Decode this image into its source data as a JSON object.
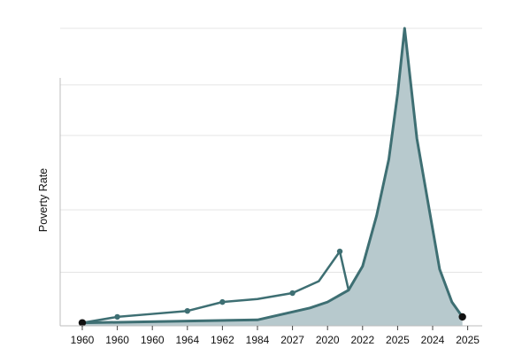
{
  "chart_data": {
    "type": "area",
    "title": "",
    "xlabel": "",
    "ylabel": "Poverty Rate",
    "categories": [
      "1960",
      "1960",
      "1960",
      "1964",
      "1962",
      "1984",
      "2027",
      "2020",
      "2022",
      "2025",
      "2024",
      "2025"
    ],
    "ylim": [
      0,
      100
    ],
    "y_ticks_labeled": false,
    "grid": true,
    "grid_values": [
      0,
      18,
      39,
      64,
      81,
      100
    ],
    "legend": "none",
    "colors": {
      "line": "#3e6f73",
      "area_fill": "#b7c9cd",
      "end_marker": "#111111",
      "grid": "#e4e4e4"
    },
    "series": [
      {
        "type": "area",
        "points": [
          {
            "x": 0.0,
            "y": 1
          },
          {
            "x": 5.0,
            "y": 2
          },
          {
            "x": 6.5,
            "y": 6
          },
          {
            "x": 7.0,
            "y": 8
          },
          {
            "x": 7.6,
            "y": 12
          },
          {
            "x": 8.0,
            "y": 20
          },
          {
            "x": 8.4,
            "y": 37
          },
          {
            "x": 8.75,
            "y": 56
          },
          {
            "x": 9.0,
            "y": 78
          },
          {
            "x": 9.2,
            "y": 100
          },
          {
            "x": 9.55,
            "y": 63
          },
          {
            "x": 10.2,
            "y": 19
          },
          {
            "x": 10.55,
            "y": 8
          },
          {
            "x": 10.85,
            "y": 3
          }
        ]
      },
      {
        "type": "line",
        "points": [
          {
            "x": 0.0,
            "y": 1
          },
          {
            "x": 1.0,
            "y": 3
          },
          {
            "x": 2.0,
            "y": 4
          },
          {
            "x": 3.0,
            "y": 5
          },
          {
            "x": 4.0,
            "y": 8
          },
          {
            "x": 5.0,
            "y": 9
          },
          {
            "x": 6.0,
            "y": 11
          },
          {
            "x": 6.75,
            "y": 15
          },
          {
            "x": 7.35,
            "y": 25
          },
          {
            "x": 7.6,
            "y": 12
          }
        ]
      }
    ]
  }
}
